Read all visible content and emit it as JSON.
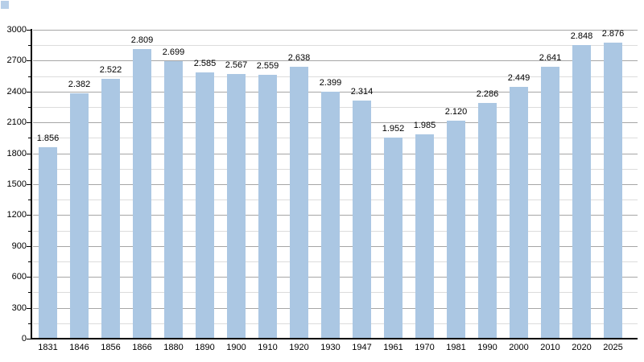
{
  "chart_data": {
    "type": "bar",
    "title": "",
    "xlabel": "",
    "ylabel": "",
    "categories": [
      "1831",
      "1846",
      "1856",
      "1866",
      "1880",
      "1890",
      "1900",
      "1910",
      "1920",
      "1930",
      "1947",
      "1961",
      "1970",
      "1981",
      "1990",
      "2000",
      "2010",
      "2020",
      "2025"
    ],
    "values": [
      1856,
      2382,
      2522,
      2809,
      2699,
      2585,
      2567,
      2559,
      2638,
      2399,
      2314,
      1952,
      1985,
      2120,
      2286,
      2449,
      2641,
      2848,
      2876
    ],
    "value_labels": [
      "1.856",
      "2.382",
      "2.522",
      "2.809",
      "2.699",
      "2.585",
      "2.567",
      "2.559",
      "2.638",
      "2.399",
      "2.314",
      "1.952",
      "1.985",
      "2.120",
      "2.286",
      "2.449",
      "2.641",
      "2.848",
      "2.876"
    ],
    "ylim": [
      0,
      3000
    ],
    "y_major_step": 300,
    "y_minor_step": 150,
    "y_tick_labels": [
      "0",
      "300",
      "600",
      "900",
      "1200",
      "1500",
      "1800",
      "2100",
      "2400",
      "2700",
      "3000"
    ],
    "grid": "horizontal major+minor, bars drawn over gridlines",
    "legend": "none",
    "colors": {
      "bar_fill": "#abc7e3",
      "major_grid": "#a6a6a6",
      "minor_grid": "#dcdcdc",
      "axis": "#000000",
      "text": "#000000"
    }
  },
  "decor": {
    "corner_swatch_color": "#b7cfe8"
  }
}
